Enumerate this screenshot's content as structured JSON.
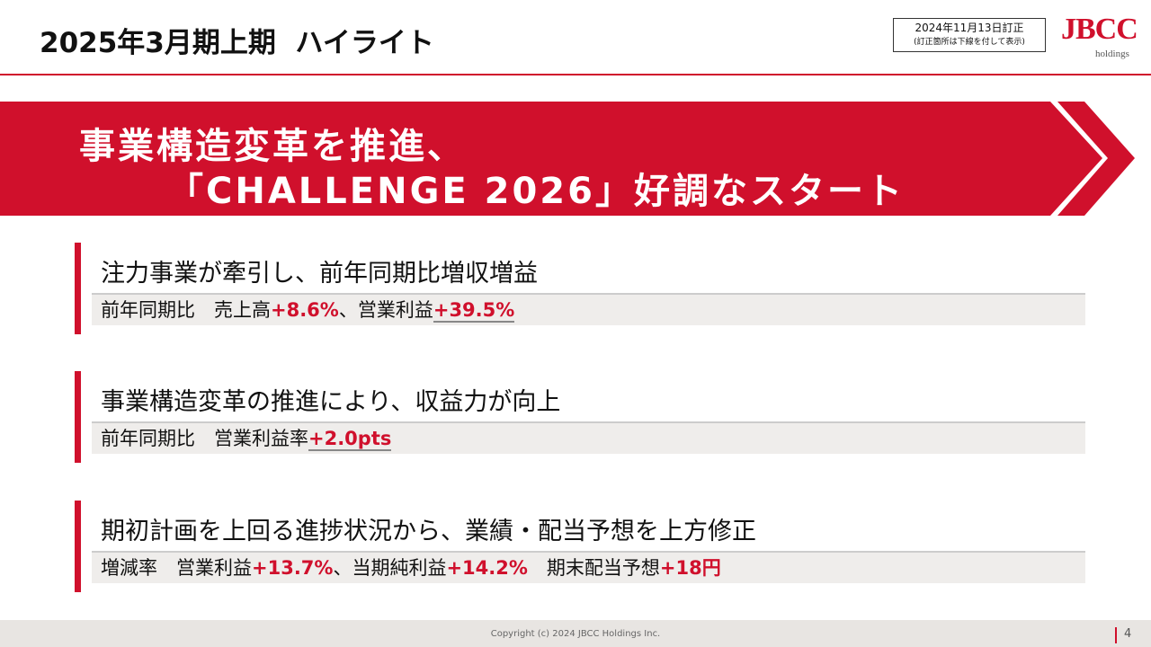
{
  "header": {
    "title": "2025年3月期上期  ハイライト",
    "revision_note": {
      "line1": "2024年11月13日訂正",
      "line2": "(訂正箇所は下線を付して表示)"
    },
    "logo": {
      "name": "JBCC",
      "sub": "holdings"
    }
  },
  "banner": {
    "line1": "事業構造変革を推進、",
    "line2": "「CHALLENGE 2026」好調なスタート"
  },
  "sections": [
    {
      "heading": "注力事業が牽引し、前年同期比増収増益",
      "detail": [
        {
          "text": "前年同期比　売上高",
          "emphasis": false,
          "underline": false
        },
        {
          "text": "+8.6%",
          "emphasis": true,
          "underline": false
        },
        {
          "text": "、営業利益",
          "emphasis": false,
          "underline": false
        },
        {
          "text": "+39.5%",
          "emphasis": true,
          "underline": true
        }
      ]
    },
    {
      "heading": "事業構造変革の推進により、収益力が向上",
      "detail": [
        {
          "text": "前年同期比　営業利益率",
          "emphasis": false,
          "underline": false
        },
        {
          "text": "+2.0pts",
          "emphasis": true,
          "underline": true
        }
      ]
    },
    {
      "heading": "期初計画を上回る進捗状況から、業績・配当予想を上方修正",
      "detail": [
        {
          "text": "増減率　営業利益",
          "emphasis": false,
          "underline": false
        },
        {
          "text": "+13.7%",
          "emphasis": true,
          "underline": false
        },
        {
          "text": "、当期純利益",
          "emphasis": false,
          "underline": false
        },
        {
          "text": "+14.2%",
          "emphasis": true,
          "underline": false
        },
        {
          "text": "　期末配当予想",
          "emphasis": false,
          "underline": false
        },
        {
          "text": "+18円",
          "emphasis": true,
          "underline": false
        }
      ]
    }
  ],
  "footer": {
    "copyright": "Copyright (c) 2024 JBCC Holdings Inc.",
    "page": "4"
  }
}
